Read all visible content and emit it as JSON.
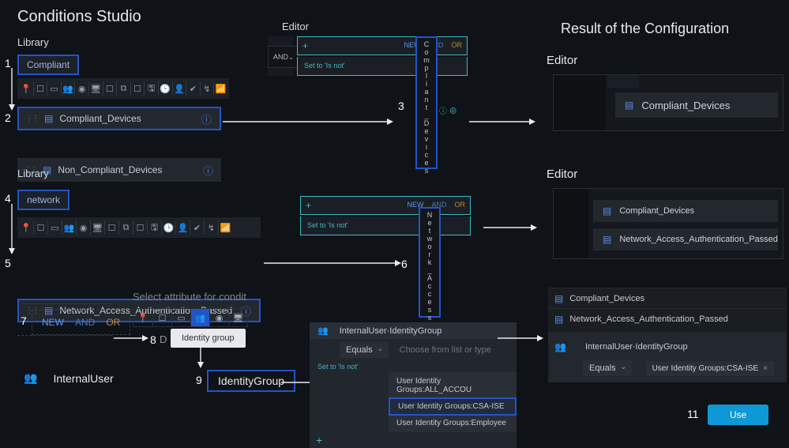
{
  "colors": {
    "bg": "#0f1217",
    "panel": "#23272e",
    "accent_blue": "#2254c9",
    "teal": "#3db8c3",
    "btn_blue": "#0f98d6",
    "text": "#e6e9ee",
    "muted": "#7e848c"
  },
  "titles": {
    "main": "Conditions Studio",
    "editor": "Editor",
    "result": "Result of the Configuration",
    "result_editor": "Editor"
  },
  "steps": {
    "s1": "1",
    "s2": "2",
    "s3": "3",
    "s4": "4",
    "s5": "5",
    "s6": "6",
    "s7": "7",
    "s8": "8",
    "s9": "9",
    "s10": "10",
    "s11": "11"
  },
  "library1": {
    "label": "Library",
    "search": "Compliant",
    "items": [
      {
        "name": "Compliant_Devices"
      },
      {
        "name": "Non_Compliant_Devices"
      }
    ]
  },
  "library2": {
    "label": "Library",
    "search": "network",
    "items": [
      {
        "name": "Network_Access_Authentication_Passed"
      }
    ]
  },
  "icon_row_glyphs": [
    "📍",
    "☐",
    "▭",
    "👥",
    "◉",
    "🖥",
    "☐",
    "⧉",
    "☐",
    "🖫",
    "🕒",
    "👤",
    "✔",
    "↯",
    "📶"
  ],
  "editor_small": {
    "and_chip": "AND",
    "tabs": {
      "new": "NEW",
      "and": "AND",
      "or": "OR"
    },
    "hint": "Set to 'Is not'",
    "col1_chars": [
      "C",
      "o",
      "m",
      "p",
      "l",
      "i",
      "a",
      "n",
      "t",
      "_",
      "D",
      "e",
      "v",
      "i",
      "c",
      "e",
      "s"
    ],
    "col2_chars": [
      "N",
      "e",
      "t",
      "w",
      "o",
      "r",
      "k",
      "_",
      "A",
      "c",
      "c",
      "e",
      "s",
      "s"
    ]
  },
  "bool_box": {
    "new": "NEW",
    "and": "AND",
    "or": "OR"
  },
  "attr_picker": {
    "title": "Select attribute for condit",
    "tooltip": "Identity group",
    "dict_suffix": "D"
  },
  "internal_user": {
    "label": "InternalUser",
    "identity_group": "IdentityGroup"
  },
  "dropdown": {
    "header": "InternalUser·IdentityGroup",
    "equals": "Equals",
    "placeholder": "Choose from list or type",
    "hint": "Set to 'Is not'",
    "options": [
      "User Identity Groups:ALL_ACCOU",
      "User Identity Groups:CSA-ISE",
      "User Identity Groups:Employee"
    ],
    "selected_index": 1
  },
  "result_editor1": {
    "item": "Compliant_Devices"
  },
  "result_editor2": {
    "items": [
      "Compliant_Devices",
      "Network_Access_Authentication_Passed"
    ]
  },
  "result_cfg": {
    "rows": [
      "Compliant_Devices",
      "Network_Access_Authentication_Passed"
    ],
    "iu_header": "InternalUser·IdentityGroup",
    "equals": "Equals",
    "chip": "User Identity Groups:CSA-ISE",
    "use": "Use"
  }
}
